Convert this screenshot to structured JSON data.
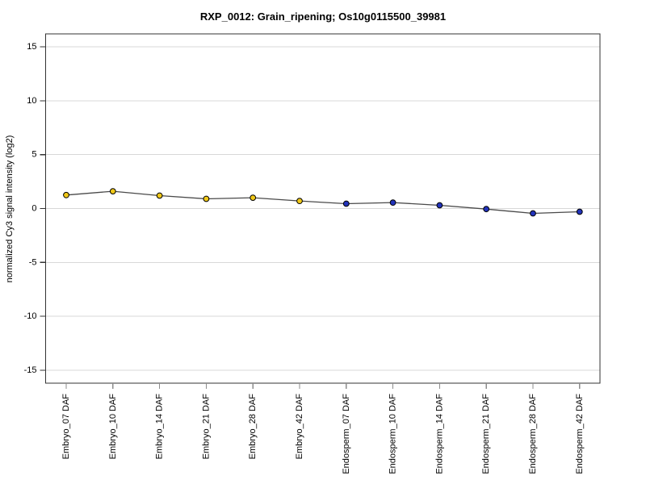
{
  "chart_data": {
    "type": "line",
    "title": "RXP_0012: Grain_ripening; Os10g0115500_39981",
    "xlabel": "",
    "ylabel": "normalized Cy3 signal intensity (log2)",
    "categories": [
      "Embryo_07 DAF",
      "Embryo_10 DAF",
      "Embryo_14 DAF",
      "Embryo_21 DAF",
      "Embryo_28 DAF",
      "Embryo_42 DAF",
      "Endosperm_07 DAF",
      "Endosperm_10 DAF",
      "Endosperm_14 DAF",
      "Endosperm_21 DAF",
      "Endosperm_28 DAF",
      "Endosperm_42 DAF"
    ],
    "values": [
      1.25,
      1.6,
      1.2,
      0.9,
      1.0,
      0.7,
      0.45,
      0.55,
      0.3,
      -0.05,
      -0.45,
      -0.3
    ],
    "point_groups": [
      "Embryo",
      "Embryo",
      "Embryo",
      "Embryo",
      "Embryo",
      "Embryo",
      "Endosperm",
      "Endosperm",
      "Endosperm",
      "Endosperm",
      "Endosperm",
      "Endosperm"
    ],
    "group_colors": {
      "Embryo": "#f0c818",
      "Endosperm": "#2233bb"
    },
    "point_border_color": "#000000",
    "line_color": "#4a4a4a",
    "grid_color": "#d8d8d8",
    "box_color": "#333333",
    "x_tick_color": "#8c8c8c",
    "y_tick_color": "#333333",
    "text_color": "#000000",
    "yticks": [
      -15,
      -10,
      -5,
      0,
      5,
      10,
      15
    ],
    "ylim": [
      -16.2,
      16.2
    ],
    "grid": true,
    "legend_position": "none"
  }
}
